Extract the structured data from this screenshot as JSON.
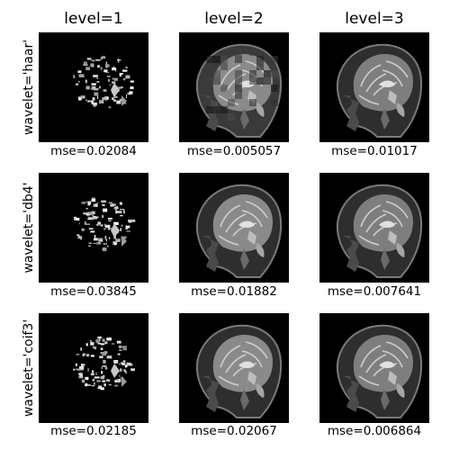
{
  "columns": [
    {
      "title": "level=1"
    },
    {
      "title": "level=2"
    },
    {
      "title": "level=3"
    }
  ],
  "rows": [
    {
      "label": "wavelet='haar'",
      "mse": [
        "mse=0.02084",
        "mse=0.005057",
        "mse=0.01017"
      ]
    },
    {
      "label": "wavelet='db4'",
      "mse": [
        "mse=0.03845",
        "mse=0.01882",
        "mse=0.007641"
      ]
    },
    {
      "label": "wavelet='coif3'",
      "mse": [
        "mse=0.02185",
        "mse=0.02067",
        "mse=0.006864"
      ]
    }
  ],
  "colors": {
    "background": "#ffffff",
    "panel": "#000000"
  }
}
